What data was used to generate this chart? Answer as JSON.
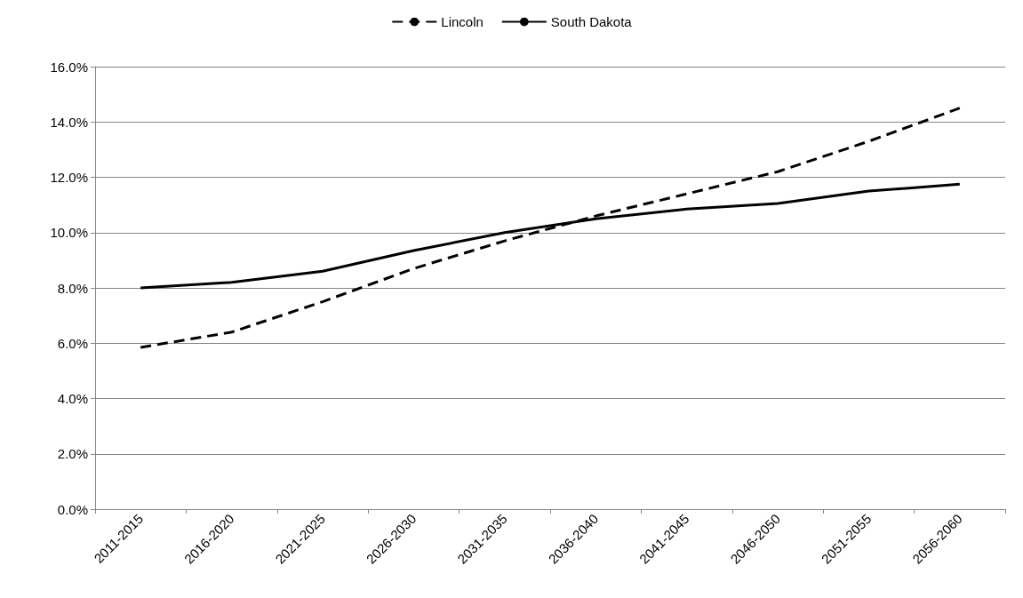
{
  "chart_data": {
    "type": "line",
    "categories": [
      "2011-2015",
      "2016-2020",
      "2021-2025",
      "2026-2030",
      "2031-2035",
      "2036-2040",
      "2041-2045",
      "2046-2050",
      "2051-2055",
      "2056-2060"
    ],
    "series": [
      {
        "name": "Lincoln",
        "color": "#000000",
        "line_style": "dashed",
        "values": [
          5.85,
          6.4,
          7.5,
          8.7,
          9.7,
          10.6,
          11.4,
          12.2,
          13.3,
          14.5
        ]
      },
      {
        "name": "South Dakota",
        "color": "#000000",
        "line_style": "solid",
        "values": [
          8.0,
          8.2,
          8.6,
          9.35,
          10.0,
          10.5,
          10.85,
          11.05,
          11.5,
          11.75
        ]
      }
    ],
    "ylim": [
      0,
      16
    ],
    "yticks": [
      {
        "value": 0,
        "label": "0.0%"
      },
      {
        "value": 2,
        "label": "2.0%"
      },
      {
        "value": 4,
        "label": "4.0%"
      },
      {
        "value": 6,
        "label": "6.0%"
      },
      {
        "value": 8,
        "label": "8.0%"
      },
      {
        "value": 10,
        "label": "10.0%"
      },
      {
        "value": 12,
        "label": "12.0%"
      },
      {
        "value": 14,
        "label": "14.0%"
      },
      {
        "value": 16,
        "label": "16.0%"
      }
    ],
    "grid": "y",
    "legend": "top",
    "marker": "none"
  }
}
